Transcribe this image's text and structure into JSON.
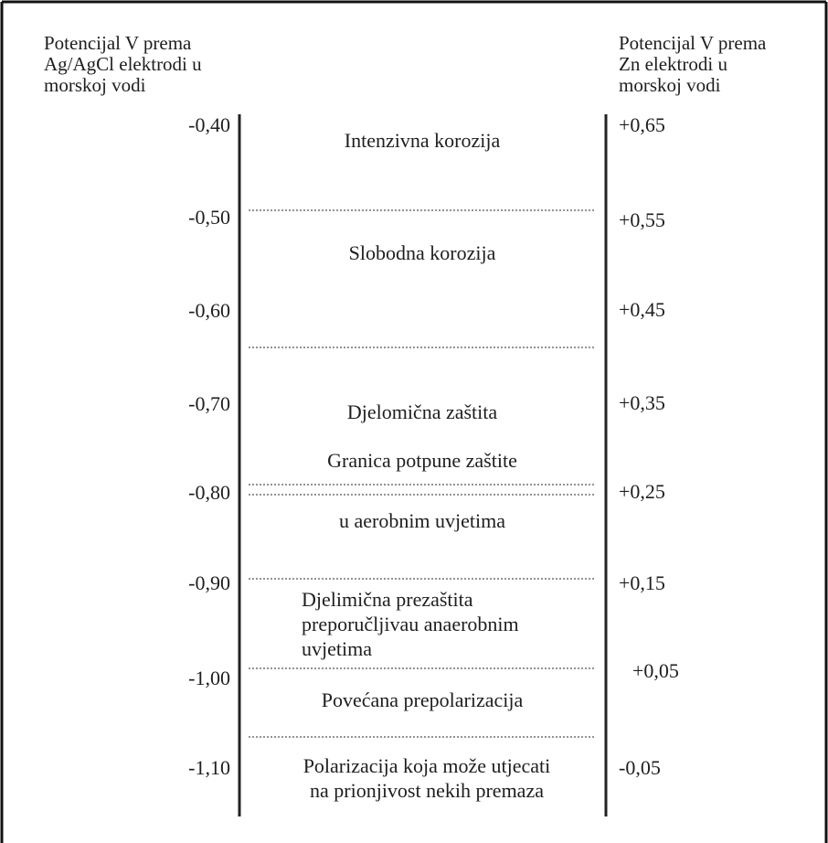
{
  "headers": {
    "left": [
      "Potencijal V prema",
      "Ag/AgCl elektrodi u",
      "morskoj vodi"
    ],
    "right": [
      "Potencijal V prema",
      "Zn elektrodi u",
      "morskoj vodi"
    ]
  },
  "left_ticks": [
    "-0,40",
    "-0,50",
    "-0,60",
    "-0,70",
    "-0,80",
    "-0,90",
    "-1,00",
    "-1,10"
  ],
  "right_ticks": [
    "+0,65",
    "+0,55",
    "+0,45",
    "+0,35",
    "+0,25",
    "+0,15",
    "+0,05",
    "-0,05"
  ],
  "zones": {
    "intensive": "Intenzivna korozija",
    "free": "Slobodna  korozija",
    "partial": "Djelomična zaštita",
    "limit_line1": "Granica potpune zaštite",
    "limit_line2": "u aerobnim uvjetima",
    "over_protection": [
      "Djelimična prezaštita",
      "preporučljivau anaerobnim",
      "uvjetima"
    ],
    "increased": "Povećana prepolarizacija",
    "polarization": [
      "Polarizacija koja može utjecati",
      "na prionjivost nekih premaza"
    ]
  }
}
